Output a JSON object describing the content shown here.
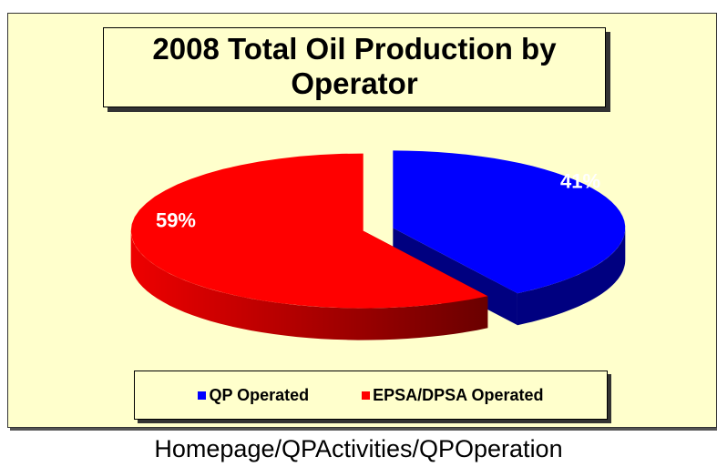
{
  "chart_data": {
    "type": "pie",
    "title": "2008 Total Oil Production by Operator",
    "categories": [
      "QP Operated",
      "EPSA/DPSA Operated"
    ],
    "values": [
      41,
      59
    ],
    "value_labels": [
      "41%",
      "59%"
    ],
    "colors": [
      "#0000ff",
      "#ff0000"
    ],
    "side_colors": [
      "#000080",
      "#8a0000"
    ],
    "legend": "bottom"
  },
  "caption": "Homepage/QPActivities/QPOperation"
}
